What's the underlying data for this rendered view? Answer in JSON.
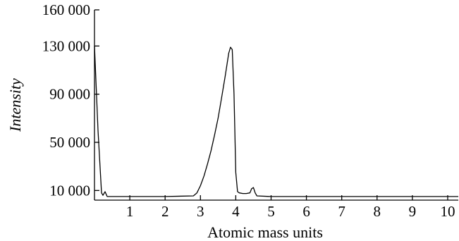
{
  "chart_data": {
    "type": "line",
    "title": "",
    "xlabel": "Atomic mass units",
    "ylabel": "Intensity",
    "xlim": [
      0,
      10.3
    ],
    "ylim": [
      2000,
      160000
    ],
    "x_ticks": [
      1,
      2,
      3,
      4,
      5,
      6,
      7,
      8,
      9,
      10
    ],
    "x_tick_labels": [
      "1",
      "2",
      "3",
      "4",
      "5",
      "6",
      "7",
      "8",
      "9",
      "10"
    ],
    "y_ticks": [
      10000,
      50000,
      90000,
      130000,
      160000
    ],
    "y_tick_labels": [
      "10 000",
      "50 000",
      "90 000",
      "130 000",
      "160 000"
    ],
    "grid": false,
    "legend": "none",
    "line_color": "#000000",
    "series": [
      {
        "x": [
          0,
          0.1,
          0.2,
          0.24,
          0.3,
          0.36,
          0.4,
          1.0,
          2.0,
          2.8,
          2.9,
          3.0,
          3.1,
          3.2,
          3.3,
          3.4,
          3.5,
          3.6,
          3.7,
          3.8,
          3.85,
          3.9,
          3.95,
          4.0,
          4.05,
          4.1,
          4.2,
          4.3,
          4.4,
          4.45,
          4.5,
          4.55,
          4.6,
          5.0,
          6.0,
          7.0,
          8.0,
          9.0,
          10.0,
          10.3
        ],
        "y": [
          130000,
          60000,
          8000,
          6000,
          9000,
          5000,
          5000,
          5000,
          5000,
          5500,
          8000,
          14000,
          22000,
          32000,
          43000,
          56000,
          70000,
          87000,
          105000,
          124000,
          129000,
          127000,
          90000,
          25000,
          9000,
          8000,
          7500,
          7500,
          8000,
          11500,
          12500,
          8000,
          5500,
          5000,
          5000,
          5000,
          5000,
          5000,
          5000,
          5000
        ]
      }
    ]
  }
}
